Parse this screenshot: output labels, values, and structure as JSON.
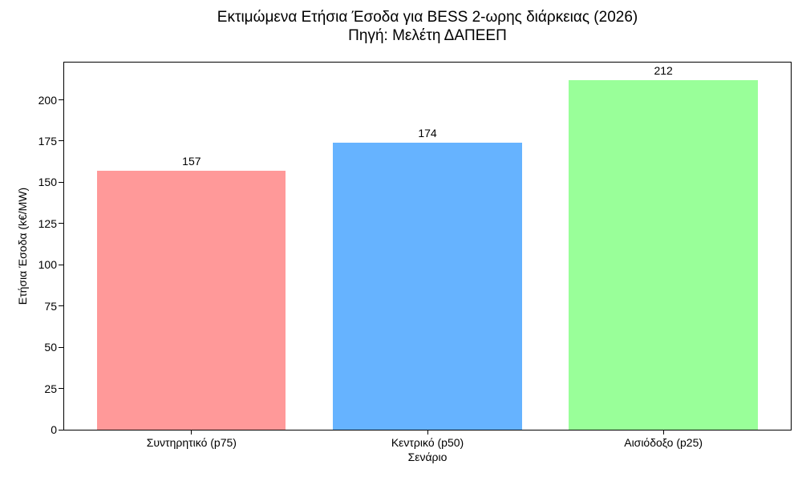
{
  "chart_data": {
    "type": "bar",
    "title": "Εκτιμώμενα Ετήσια Έσοδα για BESS 2-ωρης διάρκειας (2026)",
    "subtitle": "Πηγή: Μελέτη ΔΑΠΕΕΠ",
    "categories": [
      "Συντηρητικό (p75)",
      "Κεντρικό (p50)",
      "Αισιόδοξο (p25)"
    ],
    "values": [
      157,
      174,
      212
    ],
    "value_labels": [
      "157",
      "174",
      "212"
    ],
    "bar_colors": [
      "#ff9999",
      "#66b3ff",
      "#99ff99"
    ],
    "xlabel": "Σενάριο",
    "ylabel": "Ετήσια Έσοδα (k€/MW)",
    "ylim": [
      0,
      222.6
    ],
    "yticks": [
      0,
      25,
      50,
      75,
      100,
      125,
      150,
      175,
      200
    ],
    "grid": false,
    "legend": "none",
    "background_color": "#ffffff",
    "text_color": "#000000",
    "spine_color": "#000000"
  }
}
